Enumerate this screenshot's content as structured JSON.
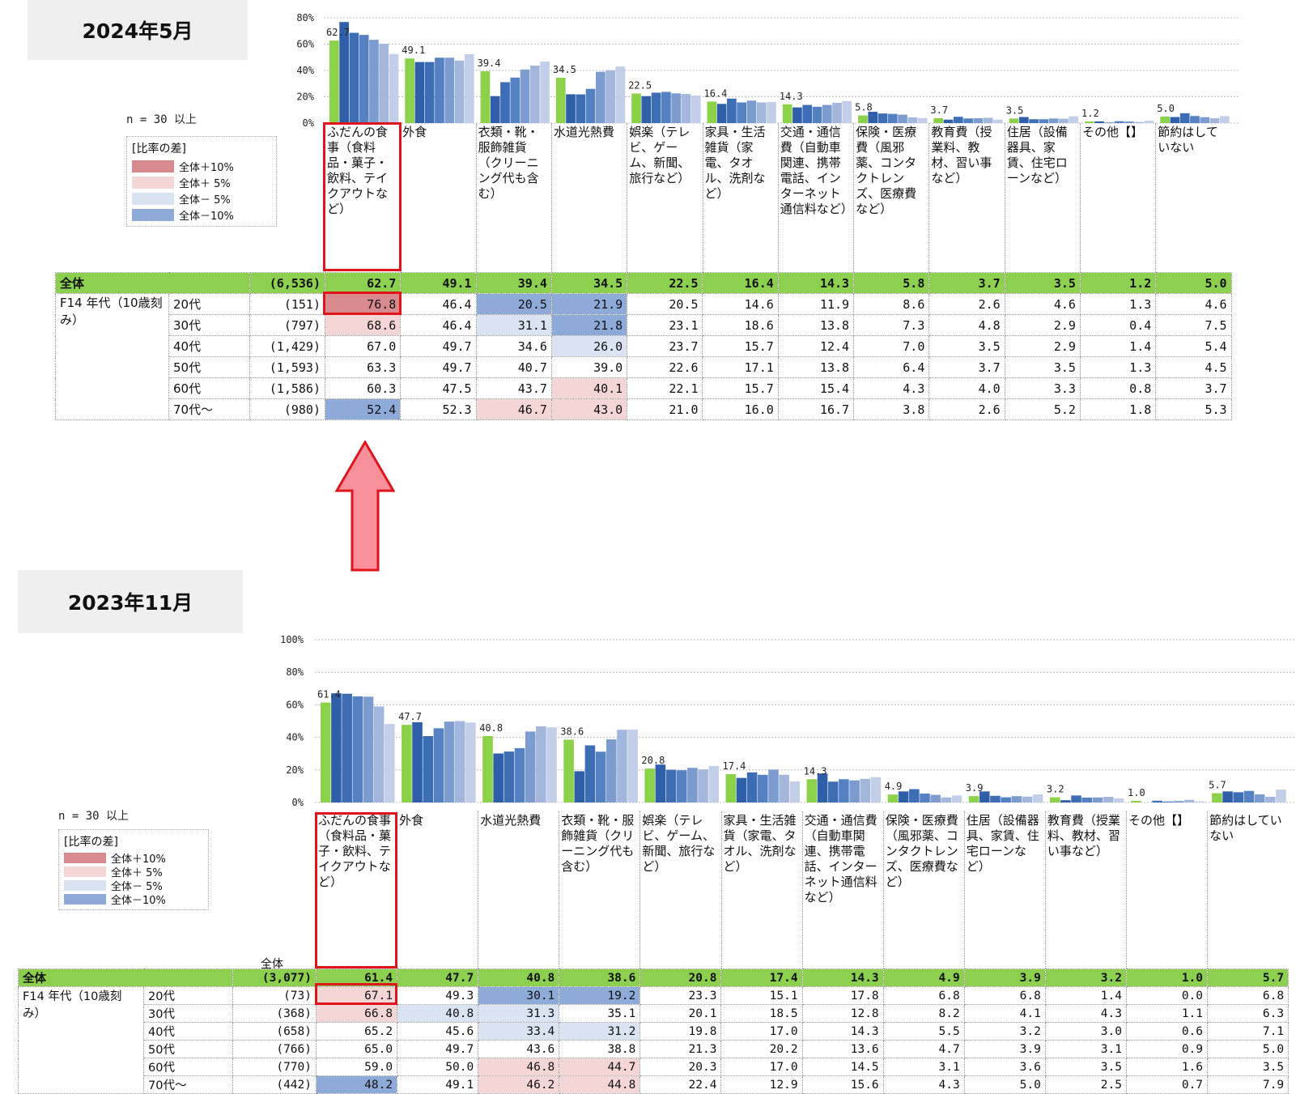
{
  "colors": {
    "total_bar": "#8cd14a",
    "ages": [
      "#2f5fa8",
      "#3d6db5",
      "#5581c3",
      "#7c9ccf",
      "#a3b7dc",
      "#c3cfe8"
    ],
    "plus10": "#d98a8e",
    "plus5": "#f5d6d6",
    "minus5": "#d9e3f2",
    "minus10": "#8daad9",
    "total_row": "#8dcf4f",
    "highlight": "#e0151c",
    "arrow": "#f7909a"
  },
  "panels": [
    {
      "title": "2024年5月",
      "n_label": "n = 30 以上",
      "legend": {
        "title": "[比率の差]",
        "items": [
          "全体＋10%",
          "全体＋ 5%",
          "全体－ 5%",
          "全体－10%"
        ]
      },
      "table_total_header": "",
      "group_label": "F14 年代（10歳刻み）",
      "chart_data": {
        "type": "bar",
        "ylim": [
          0,
          80
        ],
        "yticks": [
          "0%",
          "20%",
          "40%",
          "60%",
          "80%"
        ],
        "categories": [
          "ふだんの食事（食料品・菓子・飲料、テイクアウトなど）",
          "外食",
          "衣類・靴・服飾雑貨（クリーニング代も含む）",
          "水道光熱費",
          "娯楽（テレビ、ゲーム、新聞、旅行など）",
          "家具・生活雑貨（家電、タオル、洗剤など）",
          "交通・通信費（自動車関連、携帯電話、インターネット通信料など）",
          "保険・医療費（風邪薬、コンタクトレンズ、医療費など）",
          "教育費（授業料、教材、習い事など）",
          "住居（設備器具、家賃、住宅ローンなど）",
          "その他【】",
          "節約はしていない"
        ],
        "total": {
          "label": "全体",
          "n": "(6,536)",
          "values": [
            62.7,
            49.1,
            39.4,
            34.5,
            22.5,
            16.4,
            14.3,
            5.8,
            3.7,
            3.5,
            1.2,
            5.0
          ]
        },
        "series": [
          {
            "name": "20代",
            "n": "(151)",
            "values": [
              76.8,
              46.4,
              20.5,
              21.9,
              20.5,
              14.6,
              11.9,
              8.6,
              2.6,
              4.6,
              1.3,
              4.6
            ]
          },
          {
            "name": "30代",
            "n": "(797)",
            "values": [
              68.6,
              46.4,
              31.1,
              21.8,
              23.1,
              18.6,
              13.8,
              7.3,
              4.8,
              2.9,
              0.4,
              7.5
            ]
          },
          {
            "name": "40代",
            "n": "(1,429)",
            "values": [
              67.0,
              49.7,
              34.6,
              26.0,
              23.7,
              15.7,
              12.4,
              7.0,
              3.5,
              2.9,
              1.4,
              5.4
            ]
          },
          {
            "name": "50代",
            "n": "(1,593)",
            "values": [
              63.3,
              49.7,
              40.7,
              39.0,
              22.6,
              17.1,
              13.8,
              6.4,
              3.7,
              3.5,
              1.3,
              4.5
            ]
          },
          {
            "name": "60代",
            "n": "(1,586)",
            "values": [
              60.3,
              47.5,
              43.7,
              40.1,
              22.1,
              15.7,
              15.4,
              4.3,
              4.0,
              3.3,
              0.8,
              3.7
            ]
          },
          {
            "name": "70代～",
            "n": "(980)",
            "values": [
              52.4,
              52.3,
              46.7,
              43.0,
              21.0,
              16.0,
              16.7,
              3.8,
              2.6,
              5.2,
              1.8,
              5.3
            ]
          }
        ],
        "cell_shading": [
          [
            "plus10",
            "",
            "minus10",
            "minus10",
            "",
            "",
            "",
            "",
            "",
            "",
            "",
            ""
          ],
          [
            "plus5",
            "",
            "minus5",
            "minus10",
            "",
            "",
            "",
            "",
            "",
            "",
            "",
            ""
          ],
          [
            "",
            "",
            "",
            "minus5",
            "",
            "",
            "",
            "",
            "",
            "",
            "",
            ""
          ],
          [
            "",
            "",
            "",
            "",
            "",
            "",
            "",
            "",
            "",
            "",
            "",
            ""
          ],
          [
            "",
            "",
            "",
            "plus5",
            "",
            "",
            "",
            "",
            "",
            "",
            "",
            ""
          ],
          [
            "minus10",
            "",
            "plus5",
            "plus5",
            "",
            "",
            "",
            "",
            "",
            "",
            "",
            ""
          ]
        ]
      }
    },
    {
      "title": "2023年11月",
      "n_label": "n = 30 以上",
      "legend": {
        "title": "[比率の差]",
        "items": [
          "全体＋10%",
          "全体＋ 5%",
          "全体－ 5%",
          "全体－10%"
        ]
      },
      "table_total_header": "全体",
      "group_label": "F14 年代（10歳刻み）",
      "chart_data": {
        "type": "bar",
        "ylim": [
          0,
          100
        ],
        "yticks": [
          "0%",
          "20%",
          "40%",
          "60%",
          "80%",
          "100%"
        ],
        "categories": [
          "ふだんの食事（食料品・菓子・飲料、テイクアウトなど）",
          "外食",
          "水道光熱費",
          "衣類・靴・服飾雑貨（クリーニング代も含む）",
          "娯楽（テレビ、ゲーム、新聞、旅行など）",
          "家具・生活雑貨（家電、タオル、洗剤など）",
          "交通・通信費（自動車関連、携帯電話、インターネット通信料など）",
          "保険・医療費（風邪薬、コンタクトレンズ、医療費など）",
          "住居（設備器具、家賃、住宅ローンなど）",
          "教育費（授業料、教材、習い事など）",
          "その他【】",
          "節約はしていない"
        ],
        "total": {
          "label": "全体",
          "n": "(3,077)",
          "values": [
            61.4,
            47.7,
            40.8,
            38.6,
            20.8,
            17.4,
            14.3,
            4.9,
            3.9,
            3.2,
            1.0,
            5.7
          ]
        },
        "series": [
          {
            "name": "20代",
            "n": "(73)",
            "values": [
              67.1,
              49.3,
              30.1,
              19.2,
              23.3,
              15.1,
              17.8,
              6.8,
              6.8,
              1.4,
              0.0,
              6.8
            ]
          },
          {
            "name": "30代",
            "n": "(368)",
            "values": [
              66.8,
              40.8,
              31.3,
              35.1,
              20.1,
              18.5,
              12.8,
              8.2,
              4.1,
              4.3,
              1.1,
              6.3
            ]
          },
          {
            "name": "40代",
            "n": "(658)",
            "values": [
              65.2,
              45.6,
              33.4,
              31.2,
              19.8,
              17.0,
              14.3,
              5.5,
              3.2,
              3.0,
              0.6,
              7.1
            ]
          },
          {
            "name": "50代",
            "n": "(766)",
            "values": [
              65.0,
              49.7,
              43.6,
              38.8,
              21.3,
              20.2,
              13.6,
              4.7,
              3.9,
              3.1,
              0.9,
              5.0
            ]
          },
          {
            "name": "60代",
            "n": "(770)",
            "values": [
              59.0,
              50.0,
              46.8,
              44.7,
              20.3,
              17.0,
              14.5,
              3.1,
              3.6,
              3.5,
              1.6,
              3.5
            ]
          },
          {
            "name": "70代～",
            "n": "(442)",
            "values": [
              48.2,
              49.1,
              46.2,
              44.8,
              22.4,
              12.9,
              15.6,
              4.3,
              5.0,
              2.5,
              0.7,
              7.9
            ]
          }
        ],
        "cell_shading": [
          [
            "plus5",
            "",
            "minus10",
            "minus10",
            "",
            "",
            "",
            "",
            "",
            "",
            "",
            ""
          ],
          [
            "plus5",
            "minus5",
            "minus5",
            "",
            "",
            "",
            "",
            "",
            "",
            "",
            "",
            ""
          ],
          [
            "",
            "",
            "minus5",
            "minus5",
            "",
            "",
            "",
            "",
            "",
            "",
            "",
            ""
          ],
          [
            "",
            "",
            "",
            "",
            "",
            "",
            "",
            "",
            "",
            "",
            "",
            ""
          ],
          [
            "",
            "",
            "plus5",
            "plus5",
            "",
            "",
            "",
            "",
            "",
            "",
            "",
            ""
          ],
          [
            "minus10",
            "",
            "plus5",
            "plus5",
            "",
            "",
            "",
            "",
            "",
            "",
            "",
            ""
          ]
        ]
      }
    }
  ]
}
